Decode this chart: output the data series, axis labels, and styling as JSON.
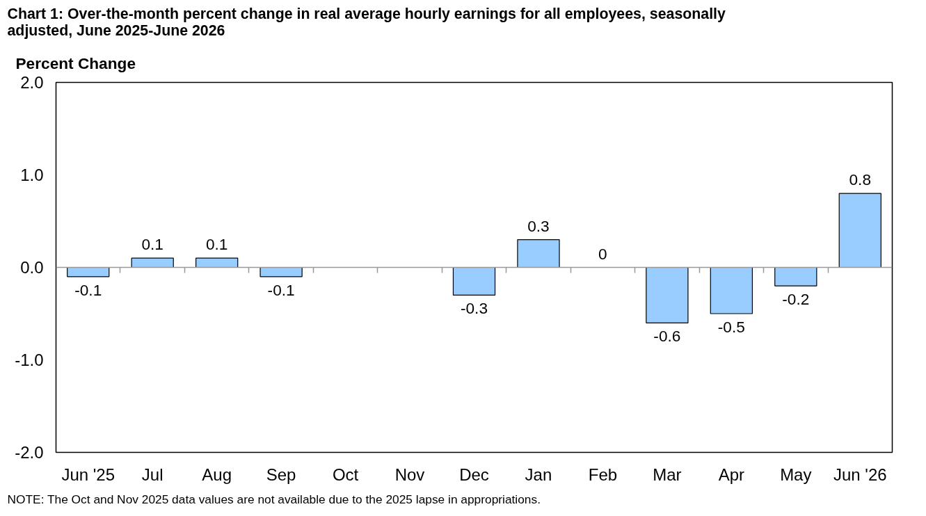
{
  "chart_data": {
    "type": "bar",
    "title": "Chart 1: Over-the-month percent change in real average hourly earnings for all employees, seasonally adjusted, June 2025-June 2026",
    "ylabel": "Percent Change",
    "categories": [
      "Jun '25",
      "Jul",
      "Aug",
      "Sep",
      "Oct",
      "Nov",
      "Dec",
      "Jan",
      "Feb",
      "Mar",
      "Apr",
      "May",
      "Jun '26"
    ],
    "values": [
      -0.1,
      0.1,
      0.1,
      -0.1,
      null,
      null,
      -0.3,
      0.3,
      0,
      -0.6,
      -0.5,
      -0.2,
      0.8
    ],
    "color": "#99ccff",
    "data_labels": true,
    "grid": false,
    "ref_lines": [
      {
        "axis": "y",
        "value": 0,
        "color": "#999999"
      }
    ],
    "ylim": [
      -2.0,
      2.0
    ],
    "yticks": [
      {
        "value": 2.0,
        "label": "2.0"
      },
      {
        "value": 1.0,
        "label": "1.0"
      },
      {
        "value": 0.0,
        "label": "0.0"
      },
      {
        "value": -1.0,
        "label": "-1.0"
      },
      {
        "value": -2.0,
        "label": "-2.0"
      }
    ],
    "annotations": [
      "NOTE: The Oct and Nov 2025 data values are not available due to the 2025 lapse in appropriations."
    ]
  }
}
